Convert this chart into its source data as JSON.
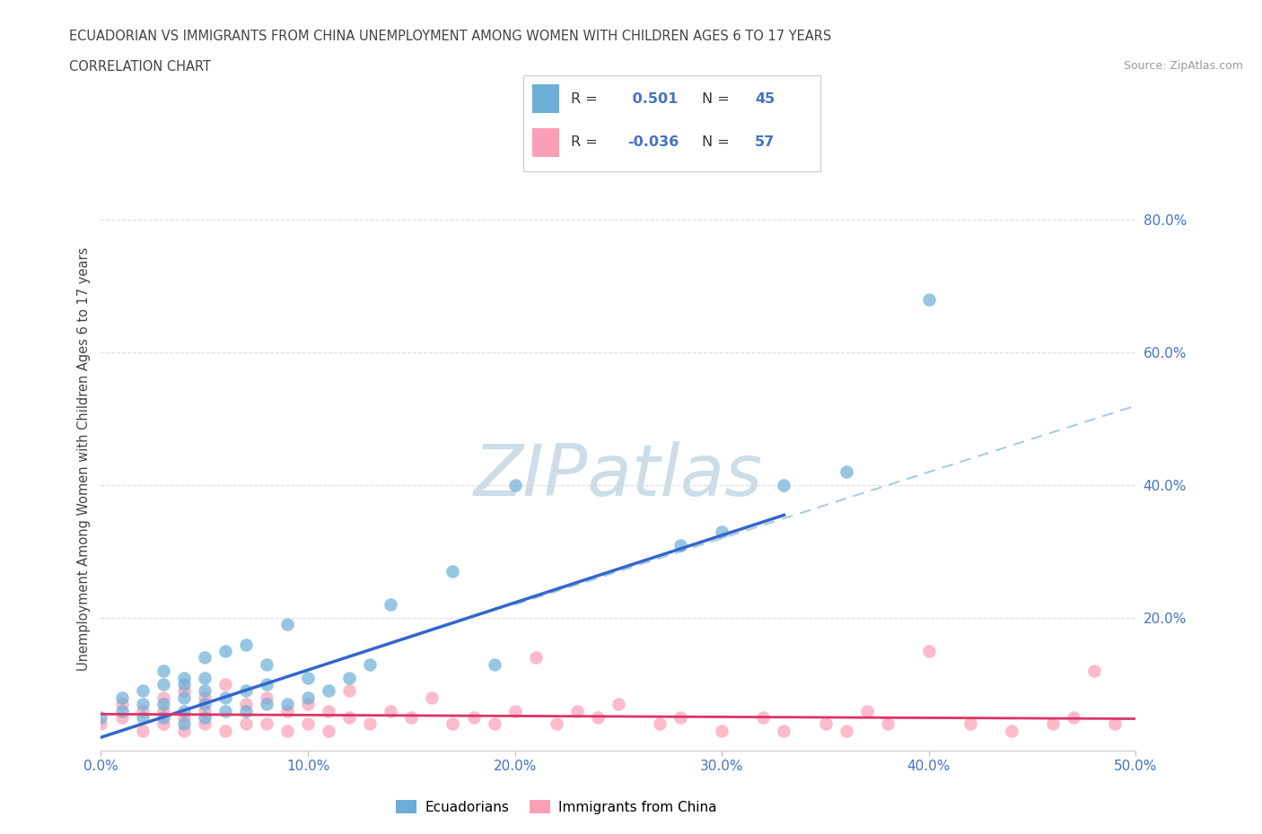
{
  "title_line1": "ECUADORIAN VS IMMIGRANTS FROM CHINA UNEMPLOYMENT AMONG WOMEN WITH CHILDREN AGES 6 TO 17 YEARS",
  "title_line2": "CORRELATION CHART",
  "source_text": "Source: ZipAtlas.com",
  "ylabel": "Unemployment Among Women with Children Ages 6 to 17 years",
  "xlim": [
    0.0,
    0.5
  ],
  "ylim": [
    0.0,
    0.88
  ],
  "xtick_values": [
    0.0,
    0.1,
    0.2,
    0.3,
    0.4,
    0.5
  ],
  "ytick_values": [
    0.2,
    0.4,
    0.6,
    0.8
  ],
  "color_blue": "#6baed6",
  "color_pink": "#fa9fb5",
  "blue_line_color": "#3366cc",
  "pink_line_color": "#dd3366",
  "dash_color": "#aaccdd",
  "background_color": "#ffffff",
  "grid_color": "#dddddd",
  "text_color": "#444444",
  "tick_color": "#4472c4",
  "blue_scatter_x": [
    0.0,
    0.01,
    0.01,
    0.02,
    0.02,
    0.02,
    0.03,
    0.03,
    0.03,
    0.03,
    0.04,
    0.04,
    0.04,
    0.04,
    0.04,
    0.05,
    0.05,
    0.05,
    0.05,
    0.05,
    0.06,
    0.06,
    0.06,
    0.07,
    0.07,
    0.07,
    0.08,
    0.08,
    0.08,
    0.09,
    0.09,
    0.1,
    0.1,
    0.11,
    0.12,
    0.13,
    0.14,
    0.17,
    0.19,
    0.2,
    0.28,
    0.3,
    0.33,
    0.36,
    0.4
  ],
  "blue_scatter_y": [
    0.05,
    0.06,
    0.08,
    0.05,
    0.07,
    0.09,
    0.05,
    0.07,
    0.1,
    0.12,
    0.04,
    0.06,
    0.08,
    0.1,
    0.11,
    0.05,
    0.07,
    0.09,
    0.11,
    0.14,
    0.06,
    0.08,
    0.15,
    0.06,
    0.09,
    0.16,
    0.07,
    0.1,
    0.13,
    0.07,
    0.19,
    0.08,
    0.11,
    0.09,
    0.11,
    0.13,
    0.22,
    0.27,
    0.13,
    0.4,
    0.31,
    0.33,
    0.4,
    0.42,
    0.68
  ],
  "pink_scatter_x": [
    0.0,
    0.01,
    0.01,
    0.02,
    0.02,
    0.03,
    0.03,
    0.03,
    0.04,
    0.04,
    0.04,
    0.05,
    0.05,
    0.05,
    0.06,
    0.06,
    0.07,
    0.07,
    0.08,
    0.08,
    0.09,
    0.09,
    0.1,
    0.1,
    0.11,
    0.11,
    0.12,
    0.12,
    0.13,
    0.14,
    0.15,
    0.16,
    0.17,
    0.18,
    0.19,
    0.2,
    0.21,
    0.22,
    0.23,
    0.24,
    0.25,
    0.27,
    0.28,
    0.3,
    0.32,
    0.33,
    0.35,
    0.36,
    0.37,
    0.38,
    0.4,
    0.42,
    0.44,
    0.46,
    0.47,
    0.48,
    0.49
  ],
  "pink_scatter_y": [
    0.04,
    0.05,
    0.07,
    0.03,
    0.06,
    0.04,
    0.06,
    0.08,
    0.03,
    0.05,
    0.09,
    0.04,
    0.06,
    0.08,
    0.03,
    0.1,
    0.04,
    0.07,
    0.04,
    0.08,
    0.03,
    0.06,
    0.04,
    0.07,
    0.03,
    0.06,
    0.05,
    0.09,
    0.04,
    0.06,
    0.05,
    0.08,
    0.04,
    0.05,
    0.04,
    0.06,
    0.14,
    0.04,
    0.06,
    0.05,
    0.07,
    0.04,
    0.05,
    0.03,
    0.05,
    0.03,
    0.04,
    0.03,
    0.06,
    0.04,
    0.15,
    0.04,
    0.03,
    0.04,
    0.05,
    0.12,
    0.04
  ],
  "blue_line_x0": 0.0,
  "blue_line_x1": 0.33,
  "blue_line_y0": 0.02,
  "blue_line_y1": 0.355,
  "dash_line_x0": 0.2,
  "dash_line_x1": 0.5,
  "dash_line_y0": 0.22,
  "dash_line_y1": 0.52,
  "pink_line_x0": 0.0,
  "pink_line_x1": 0.5,
  "pink_line_y0": 0.055,
  "pink_line_y1": 0.048
}
